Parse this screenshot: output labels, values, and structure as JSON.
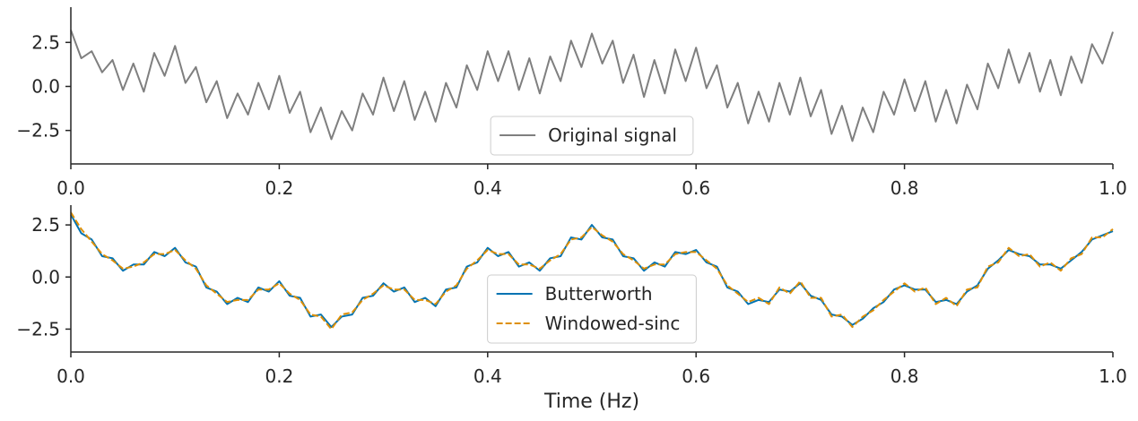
{
  "chart_data": [
    {
      "type": "line",
      "x": [
        0,
        0.01,
        0.02,
        0.03,
        0.04,
        0.05,
        0.06,
        0.07,
        0.08,
        0.09,
        0.1,
        0.11,
        0.12,
        0.13,
        0.14,
        0.15,
        0.16,
        0.17,
        0.18,
        0.19,
        0.2,
        0.21,
        0.22,
        0.23,
        0.24,
        0.25,
        0.26,
        0.27,
        0.28,
        0.29,
        0.3,
        0.31,
        0.32,
        0.33,
        0.34,
        0.35,
        0.36,
        0.37,
        0.38,
        0.39,
        0.4,
        0.41,
        0.42,
        0.43,
        0.44,
        0.45,
        0.46,
        0.47,
        0.48,
        0.49,
        0.5,
        0.51,
        0.52,
        0.53,
        0.54,
        0.55,
        0.56,
        0.57,
        0.58,
        0.59,
        0.6,
        0.61,
        0.62,
        0.63,
        0.64,
        0.65,
        0.66,
        0.67,
        0.68,
        0.69,
        0.7,
        0.71,
        0.72,
        0.73,
        0.74,
        0.75,
        0.76,
        0.77,
        0.78,
        0.79,
        0.8,
        0.81,
        0.82,
        0.83,
        0.84,
        0.85,
        0.86,
        0.87,
        0.88,
        0.89,
        0.9,
        0.91,
        0.92,
        0.93,
        0.94,
        0.95,
        0.96,
        0.97,
        0.98,
        0.99,
        1
      ],
      "series": [
        {
          "name": "Original signal",
          "color": "#7f7f7f",
          "linestyle": "solid",
          "values": [
            3.2,
            1.6,
            2.0,
            0.8,
            1.5,
            -0.2,
            1.3,
            -0.3,
            1.9,
            0.6,
            2.3,
            0.2,
            1.1,
            -0.9,
            0.3,
            -1.8,
            -0.4,
            -1.6,
            0.2,
            -1.3,
            0.6,
            -1.5,
            -0.3,
            -2.6,
            -1.2,
            -3.0,
            -1.4,
            -2.5,
            -0.4,
            -1.6,
            0.5,
            -1.4,
            0.3,
            -1.9,
            -0.3,
            -2.0,
            0.2,
            -1.2,
            1.2,
            -0.2,
            2.0,
            0.3,
            2.0,
            -0.2,
            1.6,
            -0.4,
            1.7,
            0.3,
            2.6,
            1.1,
            3.0,
            1.3,
            2.6,
            0.2,
            1.8,
            -0.6,
            1.5,
            -0.4,
            2.1,
            0.3,
            2.2,
            -0.1,
            1.2,
            -1.2,
            0.2,
            -2.1,
            -0.3,
            -2.0,
            0.2,
            -1.6,
            0.5,
            -1.7,
            -0.2,
            -2.7,
            -1.1,
            -3.1,
            -1.2,
            -2.6,
            -0.3,
            -1.6,
            0.4,
            -1.4,
            0.3,
            -2.0,
            -0.2,
            -2.1,
            0.1,
            -1.3,
            1.3,
            -0.1,
            2.1,
            0.2,
            1.9,
            -0.3,
            1.5,
            -0.5,
            1.7,
            0.2,
            2.4,
            1.3,
            3.1
          ]
        }
      ],
      "xlim": [
        0,
        1
      ],
      "ylim": [
        -4.4,
        4.5
      ],
      "xticks": [
        {
          "value": 0,
          "label": "0.0"
        },
        0.2,
        0.4,
        0.6,
        0.8,
        {
          "value": 1,
          "label": "1.0"
        }
      ],
      "yticks": [
        {
          "value": -2.5,
          "label": "−2.5"
        },
        {
          "value": 0,
          "label": "0.0"
        },
        2.5
      ],
      "legend": "lower center"
    },
    {
      "type": "line",
      "x": [
        0,
        0.01,
        0.02,
        0.03,
        0.04,
        0.05,
        0.06,
        0.07,
        0.08,
        0.09,
        0.1,
        0.11,
        0.12,
        0.13,
        0.14,
        0.15,
        0.16,
        0.17,
        0.18,
        0.19,
        0.2,
        0.21,
        0.22,
        0.23,
        0.24,
        0.25,
        0.26,
        0.27,
        0.28,
        0.29,
        0.3,
        0.31,
        0.32,
        0.33,
        0.34,
        0.35,
        0.36,
        0.37,
        0.38,
        0.39,
        0.4,
        0.41,
        0.42,
        0.43,
        0.44,
        0.45,
        0.46,
        0.47,
        0.48,
        0.49,
        0.5,
        0.51,
        0.52,
        0.53,
        0.54,
        0.55,
        0.56,
        0.57,
        0.58,
        0.59,
        0.6,
        0.61,
        0.62,
        0.63,
        0.64,
        0.65,
        0.66,
        0.67,
        0.68,
        0.69,
        0.7,
        0.71,
        0.72,
        0.73,
        0.74,
        0.75,
        0.76,
        0.77,
        0.78,
        0.79,
        0.8,
        0.81,
        0.82,
        0.83,
        0.84,
        0.85,
        0.86,
        0.87,
        0.88,
        0.89,
        0.9,
        0.91,
        0.92,
        0.93,
        0.94,
        0.95,
        0.96,
        0.97,
        0.98,
        0.99,
        1
      ],
      "series": [
        {
          "name": "Butterworth",
          "color": "#0173b2",
          "linestyle": "solid",
          "values": [
            3.0,
            2.1,
            1.8,
            1.0,
            0.9,
            0.3,
            0.6,
            0.6,
            1.2,
            1.0,
            1.4,
            0.7,
            0.5,
            -0.5,
            -0.7,
            -1.3,
            -1.0,
            -1.2,
            -0.5,
            -0.7,
            -0.2,
            -0.9,
            -1.0,
            -1.9,
            -1.8,
            -2.4,
            -1.9,
            -1.8,
            -1.0,
            -0.9,
            -0.3,
            -0.7,
            -0.5,
            -1.2,
            -1.0,
            -1.4,
            -0.6,
            -0.5,
            0.5,
            0.7,
            1.4,
            1.0,
            1.2,
            0.5,
            0.7,
            0.3,
            0.9,
            1.0,
            1.9,
            1.8,
            2.5,
            1.9,
            1.8,
            1.0,
            0.9,
            0.3,
            0.7,
            0.5,
            1.2,
            1.1,
            1.3,
            0.7,
            0.5,
            -0.5,
            -0.7,
            -1.3,
            -1.1,
            -1.2,
            -0.6,
            -0.7,
            -0.3,
            -0.9,
            -1.1,
            -1.8,
            -1.9,
            -2.3,
            -2.0,
            -1.5,
            -1.2,
            -0.6,
            -0.4,
            -0.6,
            -0.6,
            -1.2,
            -1.1,
            -1.3,
            -0.7,
            -0.4,
            0.4,
            0.8,
            1.3,
            1.1,
            1.0,
            0.6,
            0.6,
            0.4,
            0.8,
            1.2,
            1.8,
            2.0,
            2.2
          ]
        },
        {
          "name": "Windowed-sinc",
          "color": "#de8f05",
          "linestyle": "dashed",
          "values": [
            3.1,
            2.3,
            1.7,
            1.1,
            0.8,
            0.4,
            0.5,
            0.7,
            1.1,
            1.1,
            1.3,
            0.8,
            0.4,
            -0.4,
            -0.8,
            -1.2,
            -1.1,
            -1.1,
            -0.6,
            -0.6,
            -0.3,
            -0.8,
            -1.1,
            -1.8,
            -1.9,
            -2.5,
            -1.8,
            -1.7,
            -1.1,
            -0.8,
            -0.4,
            -0.6,
            -0.6,
            -1.1,
            -1.1,
            -1.3,
            -0.7,
            -0.4,
            0.4,
            0.8,
            1.3,
            1.1,
            1.1,
            0.6,
            0.6,
            0.4,
            0.8,
            1.1,
            1.8,
            1.9,
            2.4,
            2.0,
            1.7,
            1.1,
            0.8,
            0.4,
            0.6,
            0.6,
            1.1,
            1.2,
            1.2,
            0.8,
            0.4,
            -0.4,
            -0.8,
            -1.2,
            -1.0,
            -1.3,
            -0.5,
            -0.8,
            -0.2,
            -1.0,
            -1.0,
            -1.9,
            -1.8,
            -2.4,
            -1.9,
            -1.6,
            -1.1,
            -0.7,
            -0.3,
            -0.7,
            -0.5,
            -1.3,
            -1.0,
            -1.4,
            -0.6,
            -0.5,
            0.5,
            0.7,
            1.4,
            1.0,
            1.1,
            0.5,
            0.7,
            0.3,
            0.9,
            1.1,
            1.9,
            1.9,
            2.3
          ]
        }
      ],
      "xlim": [
        0,
        1
      ],
      "ylim": [
        -3.6,
        3.45
      ],
      "xticks": [
        {
          "value": 0,
          "label": "0.0"
        },
        0.2,
        0.4,
        0.6,
        0.8,
        {
          "value": 1,
          "label": "1.0"
        }
      ],
      "yticks": [
        {
          "value": -2.5,
          "label": "−2.5"
        },
        {
          "value": 0,
          "label": "0.0"
        },
        2.5
      ],
      "xlabel": "Time (Hz)",
      "legend": "lower center"
    }
  ]
}
